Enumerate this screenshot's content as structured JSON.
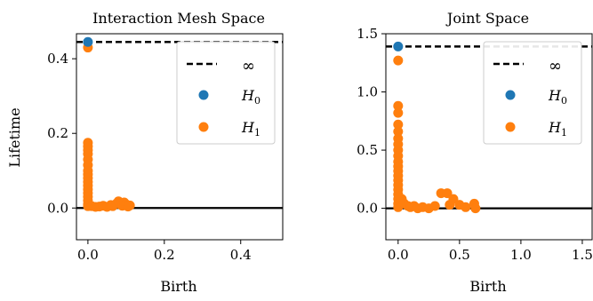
{
  "colors": {
    "h0": "#1f77b4",
    "h1": "#ff7f0e",
    "inf": "#000000",
    "zero": "#000000"
  },
  "chart_data": [
    {
      "type": "scatter",
      "title": "Interaction Mesh Space",
      "xlabel": "Birth",
      "ylabel": "Lifetime",
      "xlim": [
        -0.03,
        0.51
      ],
      "ylim": [
        -0.085,
        0.467
      ],
      "xticks": [
        0.0,
        0.2,
        0.4
      ],
      "xtick_labels": [
        "0.0",
        "0.2",
        "0.4"
      ],
      "yticks": [
        0.0,
        0.2,
        0.4
      ],
      "ytick_labels": [
        "0.0",
        "0.2",
        "0.4"
      ],
      "inf_value": 0.445,
      "grid": false,
      "legend_position": "top-right",
      "legend": {
        "inf_symbol": "∞",
        "h0_base": "H",
        "h0_sub": "0",
        "h1_base": "H",
        "h1_sub": "1"
      },
      "series": [
        {
          "name": "H0",
          "points": [
            [
              0.0,
              0.445
            ]
          ]
        },
        {
          "name": "H1",
          "points": [
            [
              0.0,
              0.43
            ],
            [
              0.0,
              0.175
            ],
            [
              0.0,
              0.165
            ],
            [
              0.0,
              0.155
            ],
            [
              0.0,
              0.145
            ],
            [
              0.0,
              0.13
            ],
            [
              0.0,
              0.115
            ],
            [
              0.0,
              0.1
            ],
            [
              0.0,
              0.09
            ],
            [
              0.0,
              0.08
            ],
            [
              0.0,
              0.07
            ],
            [
              0.0,
              0.06
            ],
            [
              0.0,
              0.05
            ],
            [
              0.0,
              0.04
            ],
            [
              0.0,
              0.03
            ],
            [
              0.0,
              0.02
            ],
            [
              0.0,
              0.01
            ],
            [
              0.0,
              0.005
            ],
            [
              0.01,
              0.005
            ],
            [
              0.02,
              0.003
            ],
            [
              0.03,
              0.004
            ],
            [
              0.04,
              0.006
            ],
            [
              0.05,
              0.003
            ],
            [
              0.06,
              0.008
            ],
            [
              0.065,
              0.005
            ],
            [
              0.075,
              0.012
            ],
            [
              0.08,
              0.018
            ],
            [
              0.085,
              0.01
            ],
            [
              0.09,
              0.006
            ],
            [
              0.095,
              0.015
            ],
            [
              0.1,
              0.01
            ],
            [
              0.105,
              0.004
            ],
            [
              0.11,
              0.007
            ]
          ]
        }
      ]
    },
    {
      "type": "scatter",
      "title": "Joint Space",
      "xlabel": "Birth",
      "ylabel": "",
      "xlim": [
        -0.1,
        1.58
      ],
      "ylim": [
        -0.27,
        1.5
      ],
      "xticks": [
        0.0,
        0.5,
        1.0,
        1.5
      ],
      "xtick_labels": [
        "0.0",
        "0.5",
        "1.0",
        "1.5"
      ],
      "yticks": [
        0.0,
        0.5,
        1.0,
        1.5
      ],
      "ytick_labels": [
        "0.0",
        "0.5",
        "1.0",
        "1.5"
      ],
      "inf_value": 1.39,
      "grid": false,
      "legend_position": "top-right",
      "legend": {
        "inf_symbol": "∞",
        "h0_base": "H",
        "h0_sub": "0",
        "h1_base": "H",
        "h1_sub": "1"
      },
      "series": [
        {
          "name": "H0",
          "points": [
            [
              0.0,
              1.39
            ]
          ]
        },
        {
          "name": "H1",
          "points": [
            [
              0.0,
              1.27
            ],
            [
              0.0,
              0.88
            ],
            [
              0.0,
              0.82
            ],
            [
              0.0,
              0.72
            ],
            [
              0.0,
              0.66
            ],
            [
              0.0,
              0.6
            ],
            [
              0.0,
              0.55
            ],
            [
              0.0,
              0.5
            ],
            [
              0.0,
              0.45
            ],
            [
              0.0,
              0.4
            ],
            [
              0.0,
              0.36
            ],
            [
              0.0,
              0.32
            ],
            [
              0.0,
              0.28
            ],
            [
              0.0,
              0.24
            ],
            [
              0.0,
              0.2
            ],
            [
              0.0,
              0.16
            ],
            [
              0.0,
              0.12
            ],
            [
              0.0,
              0.08
            ],
            [
              0.0,
              0.04
            ],
            [
              0.0,
              0.01
            ],
            [
              0.03,
              0.08
            ],
            [
              0.05,
              0.04
            ],
            [
              0.08,
              0.02
            ],
            [
              0.1,
              0.01
            ],
            [
              0.13,
              0.02
            ],
            [
              0.16,
              0.0
            ],
            [
              0.2,
              0.01
            ],
            [
              0.25,
              0.0
            ],
            [
              0.3,
              0.02
            ],
            [
              0.35,
              0.13
            ],
            [
              0.4,
              0.13
            ],
            [
              0.42,
              0.03
            ],
            [
              0.45,
              0.08
            ],
            [
              0.5,
              0.03
            ],
            [
              0.55,
              0.01
            ],
            [
              0.62,
              0.04
            ],
            [
              0.63,
              0.0
            ]
          ]
        }
      ]
    }
  ]
}
